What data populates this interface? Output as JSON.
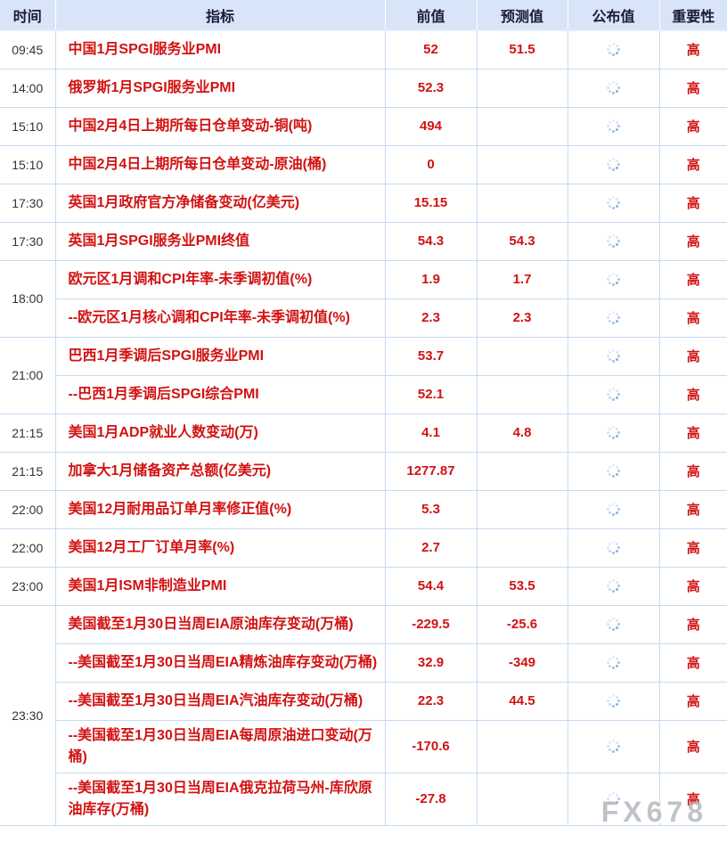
{
  "table": {
    "columns": [
      {
        "key": "time",
        "label": "时间"
      },
      {
        "key": "indicator",
        "label": "指标"
      },
      {
        "key": "previous",
        "label": "前值"
      },
      {
        "key": "forecast",
        "label": "预测值"
      },
      {
        "key": "published",
        "label": "公布值"
      },
      {
        "key": "importance",
        "label": "重要性"
      }
    ],
    "rows": [
      {
        "time": "09:45",
        "time_rowspan": 1,
        "indicator": "中国1月SPGI服务业PMI",
        "previous": "52",
        "forecast": "51.5",
        "importance": "高"
      },
      {
        "time": "14:00",
        "time_rowspan": 1,
        "indicator": "俄罗斯1月SPGI服务业PMI",
        "previous": "52.3",
        "forecast": "",
        "importance": "高"
      },
      {
        "time": "15:10",
        "time_rowspan": 1,
        "indicator": "中国2月4日上期所每日仓单变动-铜(吨)",
        "previous": "494",
        "forecast": "",
        "importance": "高"
      },
      {
        "time": "15:10",
        "time_rowspan": 1,
        "indicator": "中国2月4日上期所每日仓单变动-原油(桶)",
        "previous": "0",
        "forecast": "",
        "importance": "高"
      },
      {
        "time": "17:30",
        "time_rowspan": 1,
        "indicator": "英国1月政府官方净储备变动(亿美元)",
        "previous": "15.15",
        "forecast": "",
        "importance": "高"
      },
      {
        "time": "17:30",
        "time_rowspan": 1,
        "indicator": "英国1月SPGI服务业PMI终值",
        "previous": "54.3",
        "forecast": "54.3",
        "importance": "高"
      },
      {
        "time": "18:00",
        "time_rowspan": 2,
        "indicator": "欧元区1月调和CPI年率-未季调初值(%)",
        "previous": "1.9",
        "forecast": "1.7",
        "importance": "高"
      },
      {
        "indicator": "--欧元区1月核心调和CPI年率-未季调初值(%)",
        "previous": "2.3",
        "forecast": "2.3",
        "importance": "高"
      },
      {
        "time": "21:00",
        "time_rowspan": 2,
        "indicator": "巴西1月季调后SPGI服务业PMI",
        "previous": "53.7",
        "forecast": "",
        "importance": "高"
      },
      {
        "indicator": "--巴西1月季调后SPGI综合PMI",
        "previous": "52.1",
        "forecast": "",
        "importance": "高"
      },
      {
        "time": "21:15",
        "time_rowspan": 1,
        "indicator": "美国1月ADP就业人数变动(万)",
        "previous": "4.1",
        "forecast": "4.8",
        "importance": "高"
      },
      {
        "time": "21:15",
        "time_rowspan": 1,
        "indicator": "加拿大1月储备资产总额(亿美元)",
        "previous": "1277.87",
        "forecast": "",
        "importance": "高"
      },
      {
        "time": "22:00",
        "time_rowspan": 1,
        "indicator": "美国12月耐用品订单月率修正值(%)",
        "previous": "5.3",
        "forecast": "",
        "importance": "高"
      },
      {
        "time": "22:00",
        "time_rowspan": 1,
        "indicator": "美国12月工厂订单月率(%)",
        "previous": "2.7",
        "forecast": "",
        "importance": "高"
      },
      {
        "time": "23:00",
        "time_rowspan": 1,
        "indicator": "美国1月ISM非制造业PMI",
        "previous": "54.4",
        "forecast": "53.5",
        "importance": "高"
      },
      {
        "time": "23:30",
        "time_rowspan": 5,
        "indicator": "美国截至1月30日当周EIA原油库存变动(万桶)",
        "previous": "-229.5",
        "forecast": "-25.6",
        "importance": "高"
      },
      {
        "indicator": "--美国截至1月30日当周EIA精炼油库存变动(万桶)",
        "previous": "32.9",
        "forecast": "-349",
        "importance": "高"
      },
      {
        "indicator": "--美国截至1月30日当周EIA汽油库存变动(万桶)",
        "previous": "22.3",
        "forecast": "44.5",
        "importance": "高"
      },
      {
        "indicator": "--美国截至1月30日当周EIA每周原油进口变动(万桶)",
        "previous": "-170.6",
        "forecast": "",
        "importance": "高"
      },
      {
        "indicator": "--美国截至1月30日当周EIA俄克拉荷马州-库欣原油库存(万桶)",
        "previous": "-27.8",
        "forecast": "",
        "importance": "高"
      }
    ]
  },
  "published_status_icon": "loading-spinner-icon",
  "watermark": {
    "text": "FX678"
  },
  "colors": {
    "accent_red": "#d21212",
    "header_bg": "#d8e4f8",
    "header_text": "#1b1b38",
    "grid_border": "#c6daf2",
    "time_text": "#333333",
    "spinner_blue": "#86b0e2",
    "watermark_gray": "#aaafb6"
  }
}
